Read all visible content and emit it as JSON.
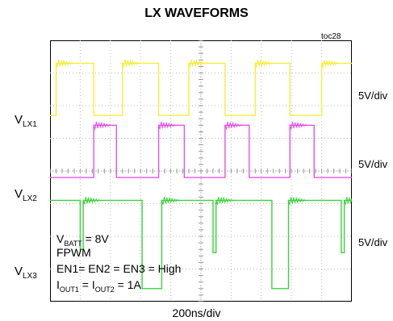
{
  "chart_data": {
    "type": "line",
    "title": "LX WAVEFORMS",
    "figure_id": "toc28",
    "xlabel": "200ns/div",
    "x_unit": "div",
    "y_unit": "div",
    "x_divisions": 10,
    "y_divisions": 8,
    "grid": true,
    "series": [
      {
        "name": "VLX1",
        "label_main": "V",
        "label_sub": "LX1",
        "scale": "5V/div",
        "color": "#f5ee3a",
        "points": [
          [
            0,
            5.7
          ],
          [
            0.2,
            5.7
          ],
          [
            0.2,
            7.3
          ],
          [
            1.45,
            7.3
          ],
          [
            1.45,
            5.7
          ],
          [
            2.4,
            5.7
          ],
          [
            2.4,
            7.3
          ],
          [
            3.6,
            7.3
          ],
          [
            3.6,
            5.7
          ],
          [
            4.6,
            5.7
          ],
          [
            4.6,
            7.3
          ],
          [
            5.8,
            7.3
          ],
          [
            5.8,
            5.7
          ],
          [
            6.8,
            5.7
          ],
          [
            6.8,
            7.3
          ],
          [
            7.95,
            7.3
          ],
          [
            7.95,
            5.7
          ],
          [
            9.0,
            5.7
          ],
          [
            9.0,
            7.3
          ],
          [
            10,
            7.3
          ]
        ]
      },
      {
        "name": "VLX2",
        "label_main": "V",
        "label_sub": "LX2",
        "scale": "5V/div",
        "color": "#e254e6",
        "points": [
          [
            0,
            3.8
          ],
          [
            1.45,
            3.8
          ],
          [
            1.45,
            5.4
          ],
          [
            2.2,
            5.4
          ],
          [
            2.2,
            3.8
          ],
          [
            3.6,
            3.8
          ],
          [
            3.6,
            5.4
          ],
          [
            4.45,
            5.4
          ],
          [
            4.45,
            3.8
          ],
          [
            5.8,
            3.8
          ],
          [
            5.8,
            5.4
          ],
          [
            6.6,
            5.4
          ],
          [
            6.6,
            3.8
          ],
          [
            7.95,
            3.8
          ],
          [
            7.95,
            5.4
          ],
          [
            8.75,
            5.4
          ],
          [
            8.75,
            3.8
          ],
          [
            10,
            3.8
          ]
        ]
      },
      {
        "name": "VLX3",
        "label_main": "V",
        "label_sub": "LX3",
        "scale": "5V/div",
        "color": "#3ad43a",
        "points": [
          [
            0,
            3.1
          ],
          [
            1.0,
            3.1
          ],
          [
            1.0,
            1.6
          ],
          [
            1.1,
            1.6
          ],
          [
            1.1,
            3.1
          ],
          [
            3.05,
            3.1
          ],
          [
            3.05,
            0.4
          ],
          [
            3.7,
            0.4
          ],
          [
            3.7,
            3.1
          ],
          [
            5.4,
            3.1
          ],
          [
            5.4,
            1.5
          ],
          [
            5.5,
            1.5
          ],
          [
            5.5,
            3.1
          ],
          [
            7.35,
            3.1
          ],
          [
            7.35,
            0.4
          ],
          [
            7.9,
            0.4
          ],
          [
            7.9,
            3.1
          ],
          [
            9.65,
            3.1
          ],
          [
            9.65,
            1.5
          ],
          [
            9.75,
            1.5
          ],
          [
            9.75,
            3.1
          ],
          [
            10,
            3.1
          ]
        ]
      }
    ],
    "annotation": {
      "vbatt_main": "V",
      "vbatt_sub": "BATT",
      "vbatt_value": " = 8V",
      "mode": "FPWM",
      "enable": "EN1= EN2 = EN3 = High",
      "iout_main1": "I",
      "iout_sub1": "OUT1",
      "iout_mid": " = I",
      "iout_sub2": "OUT2",
      "iout_value": " = 1A"
    }
  }
}
